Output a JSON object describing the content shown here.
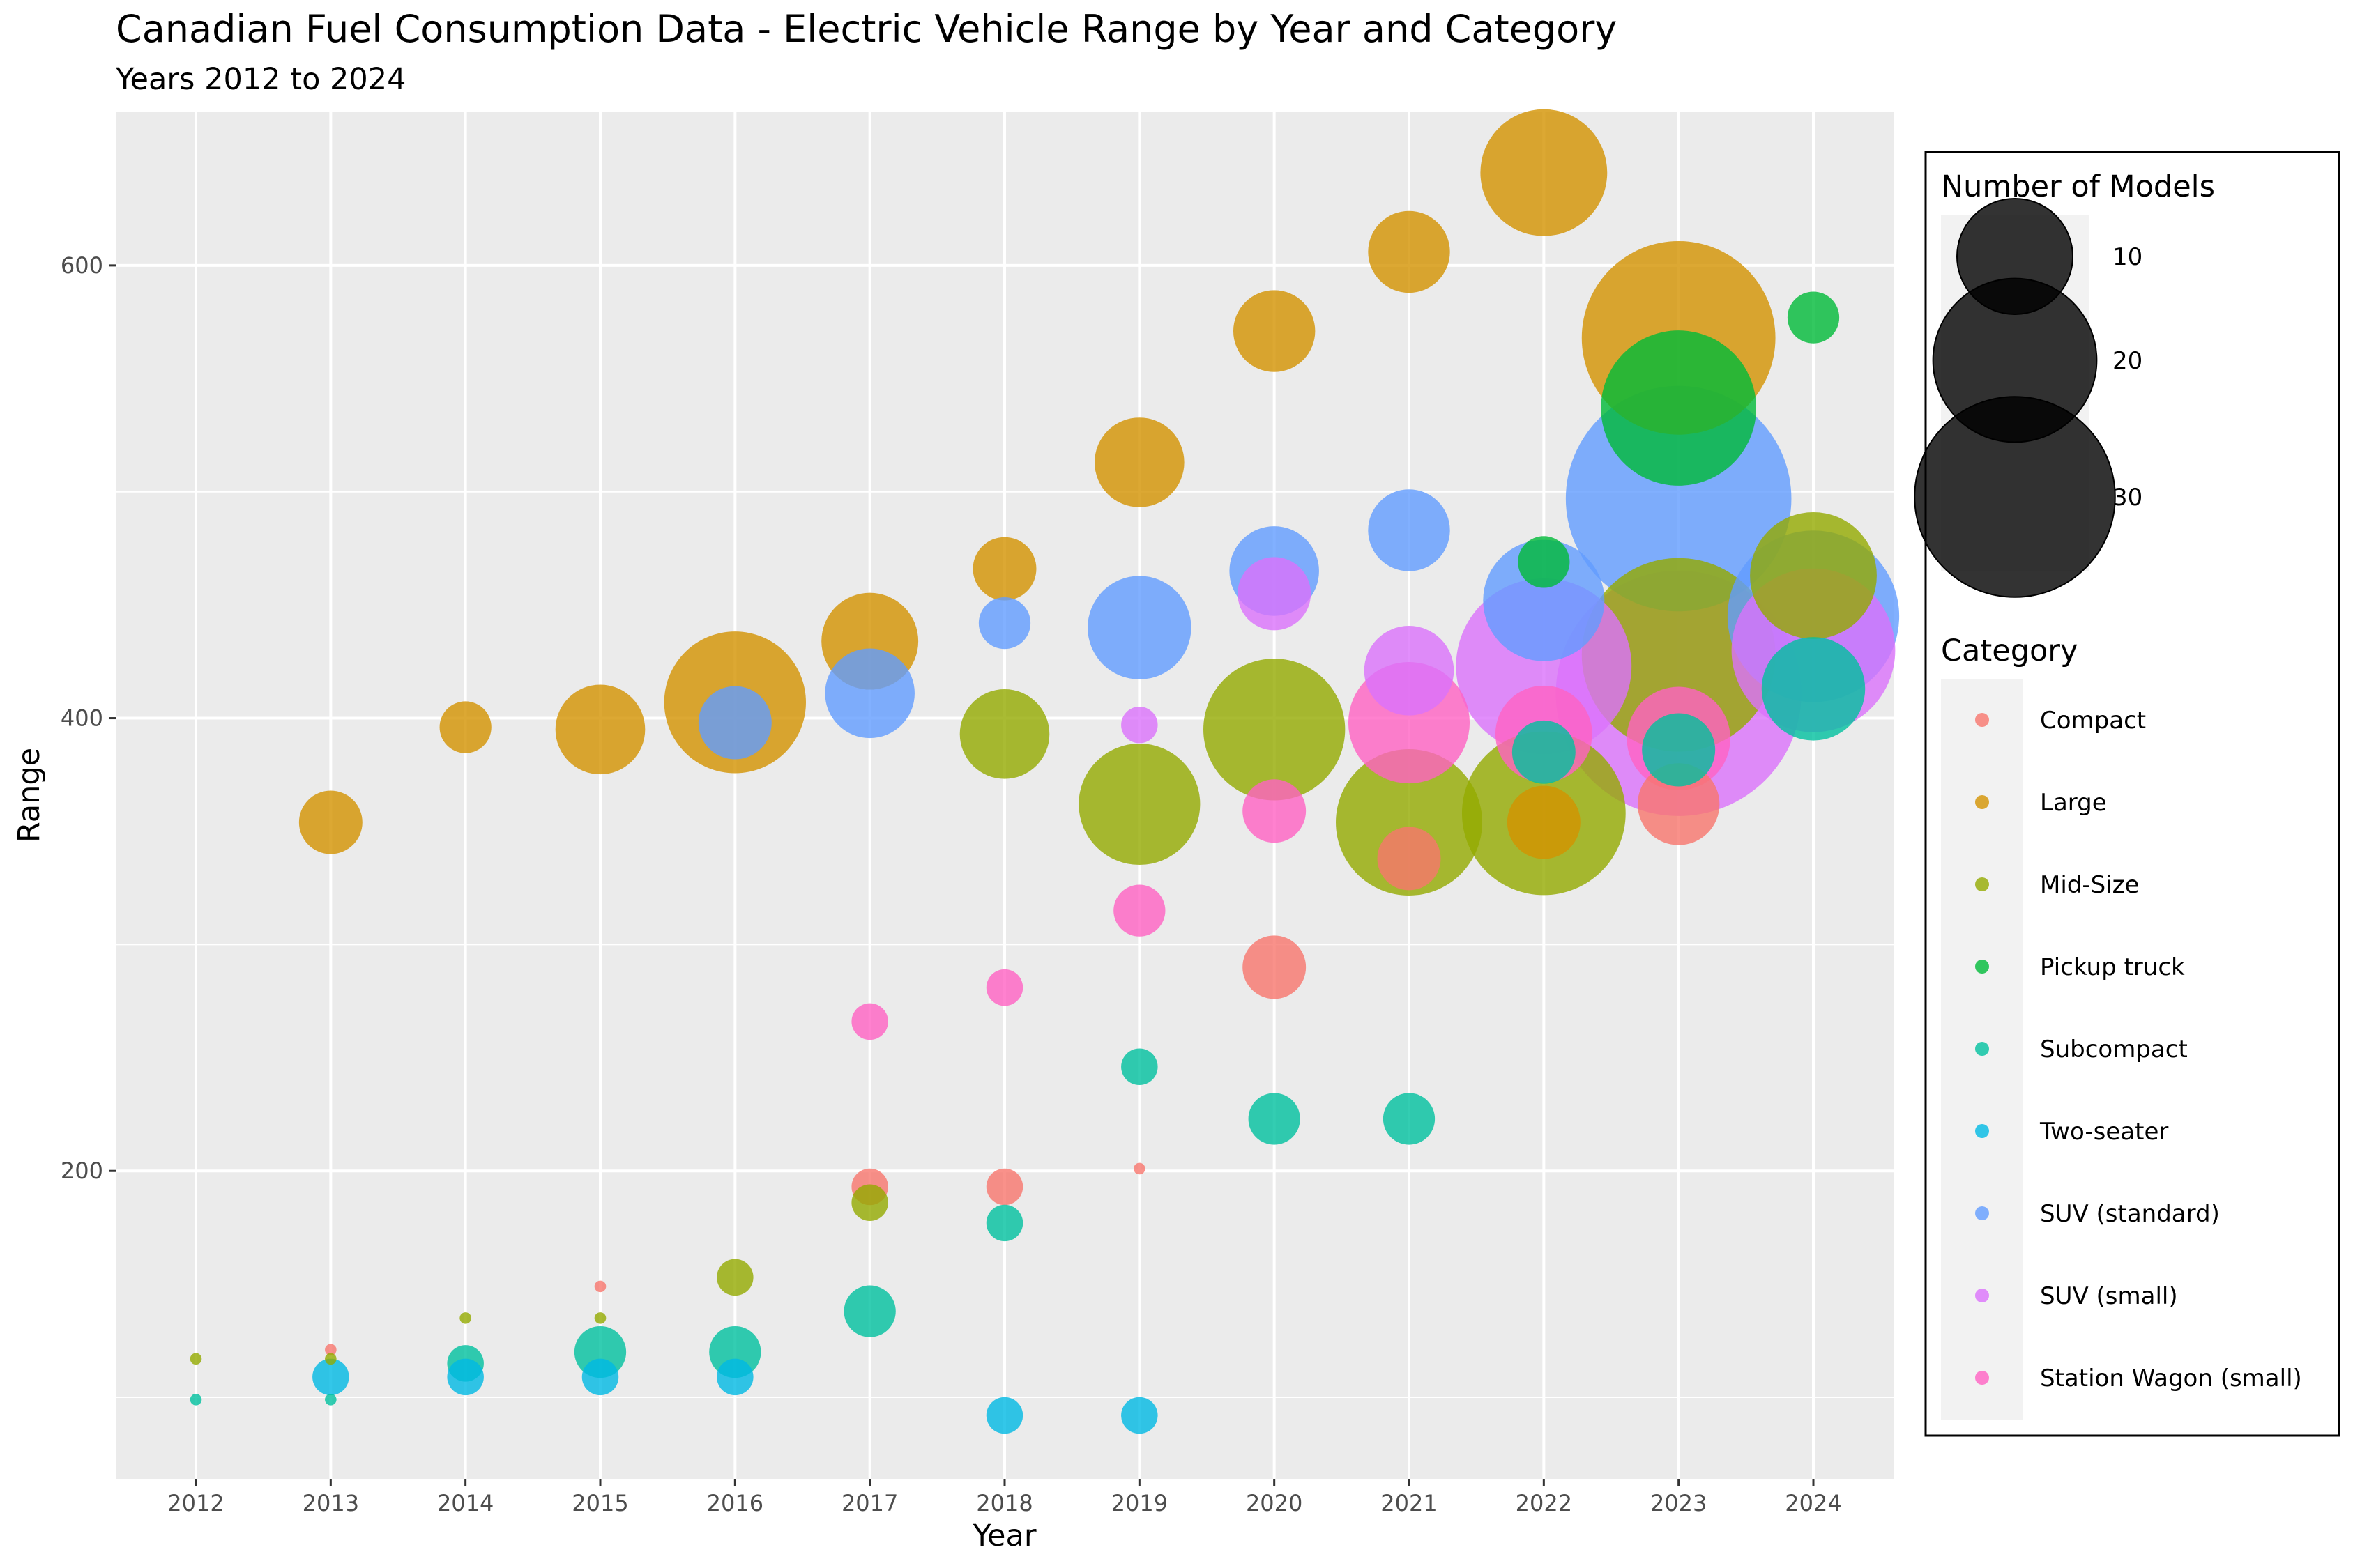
{
  "chart_data": {
    "type": "scatter",
    "title": "Canadian Fuel Consumption Data - Electric Vehicle Range by Year and Category",
    "subtitle": "Years 2012 to 2024",
    "xlabel": "Year",
    "ylabel": "Range",
    "x_ticks": [
      "2012",
      "2013",
      "2014",
      "2015",
      "2016",
      "2017",
      "2018",
      "2019",
      "2020",
      "2021",
      "2022",
      "2023",
      "2024"
    ],
    "y_ticks": [
      200,
      400,
      600
    ],
    "ylim": [
      64,
      668
    ],
    "grid": true,
    "legend_position": "right",
    "size_legend": {
      "title": "Number of Models",
      "entries": [
        {
          "label": "10",
          "value": 10
        },
        {
          "label": "20",
          "value": 20
        },
        {
          "label": "30",
          "value": 30
        }
      ]
    },
    "color_legend": {
      "title": "Category",
      "entries": [
        "Compact",
        "Large",
        "Mid-Size",
        "Pickup truck",
        "Subcompact",
        "Two-seater",
        "SUV (standard)",
        "SUV (small)",
        "Station Wagon (small)"
      ]
    },
    "colors": {
      "Compact": "#F8766D",
      "Large": "#D39200",
      "Mid-Size": "#93AA00",
      "Pickup truck": "#00BA38",
      "Subcompact": "#00C19F",
      "Two-seater": "#00B9E3",
      "SUV (standard)": "#619CFF",
      "SUV (small)": "#DB72FB",
      "Station Wagon (small)": "#FF61C3"
    },
    "series": [
      {
        "name": "Compact",
        "points": [
          {
            "x": 2013,
            "y": 121,
            "n": 0.1
          },
          {
            "x": 2015,
            "y": 149,
            "n": 0.1
          },
          {
            "x": 2017,
            "y": 193,
            "n": 1
          },
          {
            "x": 2018,
            "y": 193,
            "n": 1
          },
          {
            "x": 2019,
            "y": 201,
            "n": 0.1
          },
          {
            "x": 2020,
            "y": 290,
            "n": 3
          },
          {
            "x": 2021,
            "y": 338,
            "n": 3
          },
          {
            "x": 2023,
            "y": 362,
            "n": 5
          }
        ]
      },
      {
        "name": "Large",
        "points": [
          {
            "x": 2013,
            "y": 354,
            "n": 3
          },
          {
            "x": 2014,
            "y": 396,
            "n": 2
          },
          {
            "x": 2015,
            "y": 395,
            "n": 6
          },
          {
            "x": 2016,
            "y": 407,
            "n": 15
          },
          {
            "x": 2017,
            "y": 434,
            "n": 7
          },
          {
            "x": 2018,
            "y": 466,
            "n": 3
          },
          {
            "x": 2019,
            "y": 513,
            "n": 6
          },
          {
            "x": 2020,
            "y": 571,
            "n": 5
          },
          {
            "x": 2021,
            "y": 606,
            "n": 5
          },
          {
            "x": 2022,
            "y": 641,
            "n": 12
          },
          {
            "x": 2023,
            "y": 568,
            "n": 28
          },
          {
            "x": 2022,
            "y": 354,
            "n": 4
          }
        ]
      },
      {
        "name": "Mid-Size",
        "points": [
          {
            "x": 2012,
            "y": 117,
            "n": 0.1
          },
          {
            "x": 2013,
            "y": 117,
            "n": 0.1
          },
          {
            "x": 2014,
            "y": 135,
            "n": 0.1
          },
          {
            "x": 2015,
            "y": 135,
            "n": 0.1
          },
          {
            "x": 2016,
            "y": 153,
            "n": 1
          },
          {
            "x": 2017,
            "y": 186,
            "n": 1
          },
          {
            "x": 2018,
            "y": 393,
            "n": 6
          },
          {
            "x": 2019,
            "y": 362,
            "n": 11
          },
          {
            "x": 2020,
            "y": 395,
            "n": 15
          },
          {
            "x": 2021,
            "y": 354,
            "n": 16
          },
          {
            "x": 2022,
            "y": 358,
            "n": 20
          },
          {
            "x": 2023,
            "y": 428,
            "n": 28
          },
          {
            "x": 2024,
            "y": 463,
            "n": 12
          }
        ]
      },
      {
        "name": "Pickup truck",
        "points": [
          {
            "x": 2022,
            "y": 469,
            "n": 2
          },
          {
            "x": 2023,
            "y": 537,
            "n": 18
          },
          {
            "x": 2024,
            "y": 577,
            "n": 2
          }
        ]
      },
      {
        "name": "Subcompact",
        "points": [
          {
            "x": 2012,
            "y": 99,
            "n": 0.1
          },
          {
            "x": 2013,
            "y": 99,
            "n": 0.1
          },
          {
            "x": 2014,
            "y": 115,
            "n": 1
          },
          {
            "x": 2015,
            "y": 120,
            "n": 2
          },
          {
            "x": 2016,
            "y": 120,
            "n": 2
          },
          {
            "x": 2017,
            "y": 138,
            "n": 2
          },
          {
            "x": 2018,
            "y": 177,
            "n": 1
          },
          {
            "x": 2019,
            "y": 246,
            "n": 1
          },
          {
            "x": 2020,
            "y": 223,
            "n": 2
          },
          {
            "x": 2021,
            "y": 223,
            "n": 2
          },
          {
            "x": 2022,
            "y": 385,
            "n": 3
          },
          {
            "x": 2023,
            "y": 386,
            "n": 4
          },
          {
            "x": 2024,
            "y": 413,
            "n": 8
          }
        ]
      },
      {
        "name": "Two-seater",
        "points": [
          {
            "x": 2013,
            "y": 109,
            "n": 1
          },
          {
            "x": 2014,
            "y": 109,
            "n": 1
          },
          {
            "x": 2015,
            "y": 109,
            "n": 1
          },
          {
            "x": 2016,
            "y": 109,
            "n": 1
          },
          {
            "x": 2018,
            "y": 92,
            "n": 1
          },
          {
            "x": 2019,
            "y": 92,
            "n": 1
          }
        ]
      },
      {
        "name": "SUV (standard)",
        "points": [
          {
            "x": 2016,
            "y": 398,
            "n": 4
          },
          {
            "x": 2017,
            "y": 411,
            "n": 6
          },
          {
            "x": 2018,
            "y": 442,
            "n": 2
          },
          {
            "x": 2019,
            "y": 440,
            "n": 8
          },
          {
            "x": 2020,
            "y": 465,
            "n": 6
          },
          {
            "x": 2021,
            "y": 483,
            "n": 5
          },
          {
            "x": 2022,
            "y": 452,
            "n": 11
          },
          {
            "x": 2023,
            "y": 497,
            "n": 38
          },
          {
            "x": 2024,
            "y": 445,
            "n": 22
          }
        ]
      },
      {
        "name": "SUV (small)",
        "points": [
          {
            "x": 2019,
            "y": 397,
            "n": 1
          },
          {
            "x": 2020,
            "y": 455,
            "n": 4
          },
          {
            "x": 2021,
            "y": 421,
            "n": 6
          },
          {
            "x": 2022,
            "y": 423,
            "n": 23
          },
          {
            "x": 2023,
            "y": 411,
            "n": 45
          },
          {
            "x": 2024,
            "y": 430,
            "n": 20
          }
        ]
      },
      {
        "name": "Station Wagon (small)",
        "points": [
          {
            "x": 2017,
            "y": 266,
            "n": 1
          },
          {
            "x": 2018,
            "y": 281,
            "n": 1
          },
          {
            "x": 2019,
            "y": 315,
            "n": 2
          },
          {
            "x": 2020,
            "y": 359,
            "n": 3
          },
          {
            "x": 2021,
            "y": 398,
            "n": 11
          },
          {
            "x": 2022,
            "y": 393,
            "n": 7
          },
          {
            "x": 2023,
            "y": 391,
            "n": 8
          }
        ]
      }
    ]
  }
}
